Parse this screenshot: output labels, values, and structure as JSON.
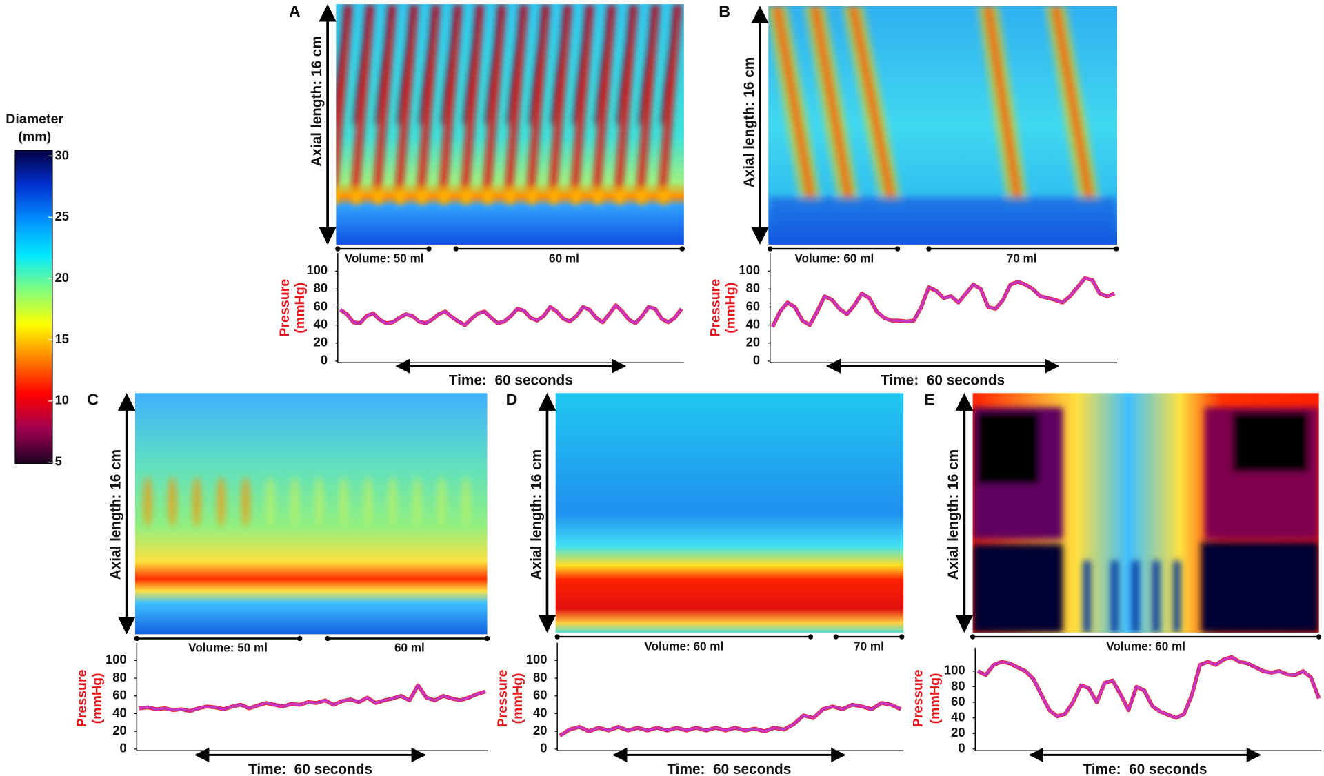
{
  "chart_data": [
    {
      "type": "colorbar",
      "title": [
        "Diameter",
        "(mm)"
      ],
      "ylim": [
        5,
        30
      ],
      "yticks": [
        5,
        10,
        15,
        20,
        25,
        30
      ],
      "colors": [
        "#1a0020",
        "#a00050",
        "#ff0000",
        "#ff8000",
        "#ffff00",
        "#80ff80",
        "#00e8ff",
        "#0090ff",
        "#0030d0",
        "#000040"
      ]
    },
    {
      "type": "line",
      "panel": "A",
      "heatmap_label": "Axial length: 16 cm",
      "volume_labels": [
        "Volume: 50 ml",
        "60 ml"
      ],
      "y_label": [
        "Pressure",
        "(mmHg)"
      ],
      "x_label": "Time:  60 seconds",
      "ylim": [
        0,
        120
      ],
      "yticks": [
        0,
        20,
        40,
        60,
        80,
        100
      ],
      "color": "#c535c5",
      "values": [
        57,
        52,
        43,
        42,
        50,
        53,
        46,
        42,
        43,
        48,
        52,
        50,
        44,
        42,
        46,
        52,
        55,
        49,
        44,
        40,
        47,
        53,
        55,
        48,
        42,
        44,
        50,
        58,
        56,
        48,
        45,
        50,
        60,
        55,
        47,
        44,
        50,
        60,
        57,
        48,
        43,
        52,
        62,
        55,
        46,
        42,
        50,
        60,
        58,
        47,
        43,
        48,
        58
      ]
    },
    {
      "type": "line",
      "panel": "B",
      "heatmap_label": "Axial length: 16 cm",
      "volume_labels": [
        "Volume: 60 ml",
        "70 ml"
      ],
      "y_label": [
        "Pressure",
        "(mmHg)"
      ],
      "x_label": "Time:  60 seconds",
      "ylim": [
        0,
        120
      ],
      "yticks": [
        0,
        20,
        40,
        60,
        80,
        100
      ],
      "color": "#c535c5",
      "values": [
        38,
        55,
        65,
        60,
        45,
        40,
        55,
        72,
        68,
        58,
        52,
        62,
        75,
        70,
        55,
        48,
        45,
        45,
        44,
        45,
        60,
        82,
        78,
        70,
        72,
        65,
        75,
        85,
        80,
        60,
        58,
        68,
        85,
        88,
        85,
        80,
        72,
        70,
        68,
        65,
        72,
        82,
        92,
        90,
        75,
        72,
        75
      ]
    },
    {
      "type": "line",
      "panel": "C",
      "heatmap_label": "Axial length: 16 cm",
      "volume_labels": [
        "Volume: 50 ml",
        "60 ml"
      ],
      "y_label": [
        "Pressure",
        "(mmHg)"
      ],
      "x_label": "Time:  60 seconds",
      "ylim": [
        0,
        120
      ],
      "yticks": [
        0,
        20,
        40,
        60,
        80,
        100
      ],
      "color": "#c535c5",
      "values": [
        46,
        47,
        45,
        46,
        44,
        45,
        43,
        46,
        48,
        47,
        45,
        48,
        50,
        46,
        49,
        52,
        50,
        48,
        51,
        50,
        53,
        52,
        55,
        50,
        54,
        56,
        53,
        58,
        52,
        55,
        57,
        60,
        55,
        72,
        58,
        55,
        60,
        57,
        55,
        58,
        62,
        65
      ]
    },
    {
      "type": "line",
      "panel": "D",
      "heatmap_label": "Axial length: 16 cm",
      "volume_labels": [
        "Volume: 60 ml",
        "70 ml"
      ],
      "y_label": [
        "Pressure",
        "(mmHg)"
      ],
      "x_label": "Time:  60 seconds",
      "ylim": [
        0,
        120
      ],
      "yticks": [
        0,
        20,
        40,
        60,
        80,
        100
      ],
      "color": "#c535c5",
      "values": [
        15,
        22,
        25,
        20,
        24,
        21,
        25,
        21,
        24,
        21,
        24,
        21,
        24,
        21,
        24,
        21,
        24,
        21,
        24,
        21,
        23,
        20,
        24,
        22,
        28,
        38,
        35,
        45,
        48,
        45,
        50,
        48,
        45,
        52,
        50,
        45
      ]
    },
    {
      "type": "line",
      "panel": "E",
      "heatmap_label": "Axial length: 16 cm",
      "volume_labels": [
        "Volume: 60 ml"
      ],
      "y_label": [
        "Pressure",
        "(mmHg)"
      ],
      "x_label": "Time:  60 seconds",
      "ylim": [
        0,
        130
      ],
      "yticks": [
        0,
        20,
        40,
        60,
        80,
        100
      ],
      "color": "#c535c5",
      "values": [
        100,
        95,
        108,
        112,
        110,
        105,
        100,
        90,
        70,
        50,
        42,
        45,
        60,
        82,
        78,
        60,
        85,
        88,
        70,
        50,
        80,
        75,
        55,
        48,
        44,
        40,
        45,
        70,
        108,
        112,
        108,
        115,
        118,
        112,
        110,
        105,
        100,
        98,
        100,
        96,
        95,
        100,
        92,
        65
      ]
    }
  ]
}
